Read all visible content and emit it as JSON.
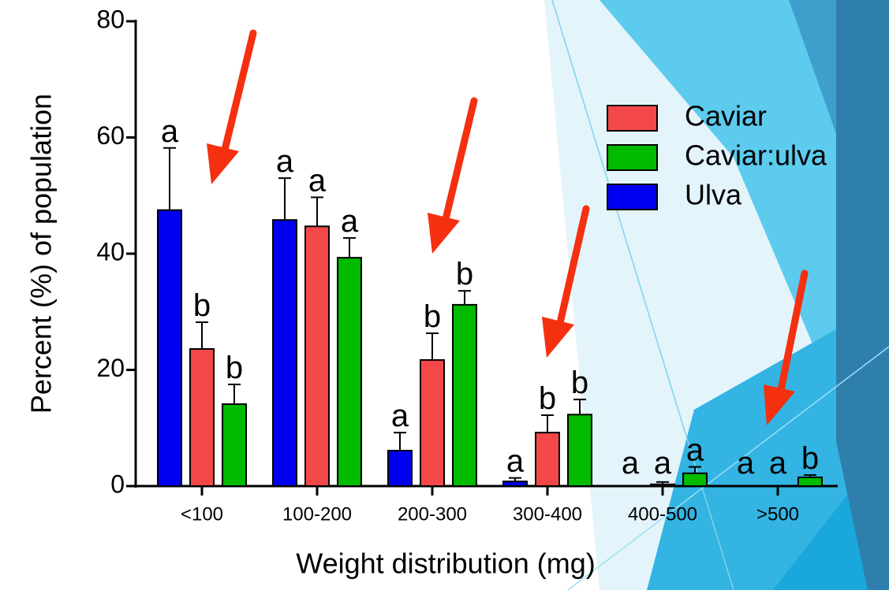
{
  "chart_data": {
    "type": "bar",
    "x_label": "Weight distribution (mg)",
    "y_label": "Percent (%) of population",
    "categories": [
      "<100",
      "100-200",
      "200-300",
      "300-400",
      "400-500",
      ">500"
    ],
    "series": [
      {
        "name": "Caviar",
        "color": "#f44848",
        "values": [
          23.6,
          44.7,
          21.7,
          9.2,
          0.3,
          0
        ],
        "errors": [
          4.6,
          5,
          4.6,
          3,
          0.4,
          0
        ],
        "letters": [
          "b",
          "a",
          "b",
          "b",
          "a",
          "a"
        ]
      },
      {
        "name": "Caviar:ulva",
        "color": "#00bb00",
        "values": [
          14.1,
          39.3,
          31.2,
          12.3,
          2.2,
          1.5
        ],
        "errors": [
          3.4,
          3.4,
          2.4,
          2.6,
          1.1,
          0.4
        ],
        "letters": [
          "b",
          "a",
          "b",
          "b",
          "a",
          "b"
        ]
      },
      {
        "name": "Ulva",
        "color": "#0000f0",
        "values": [
          47.5,
          45.8,
          6.1,
          0.8,
          0,
          0
        ],
        "errors": [
          10.7,
          7.2,
          3.1,
          0.6,
          0,
          0
        ],
        "letters": [
          "a",
          "a",
          "a",
          "a",
          "a",
          "a"
        ]
      }
    ],
    "ylim": [
      0,
      80
    ],
    "yticks": [
      0,
      20,
      40,
      60,
      80
    ],
    "grid": false,
    "legend": "upper right"
  }
}
